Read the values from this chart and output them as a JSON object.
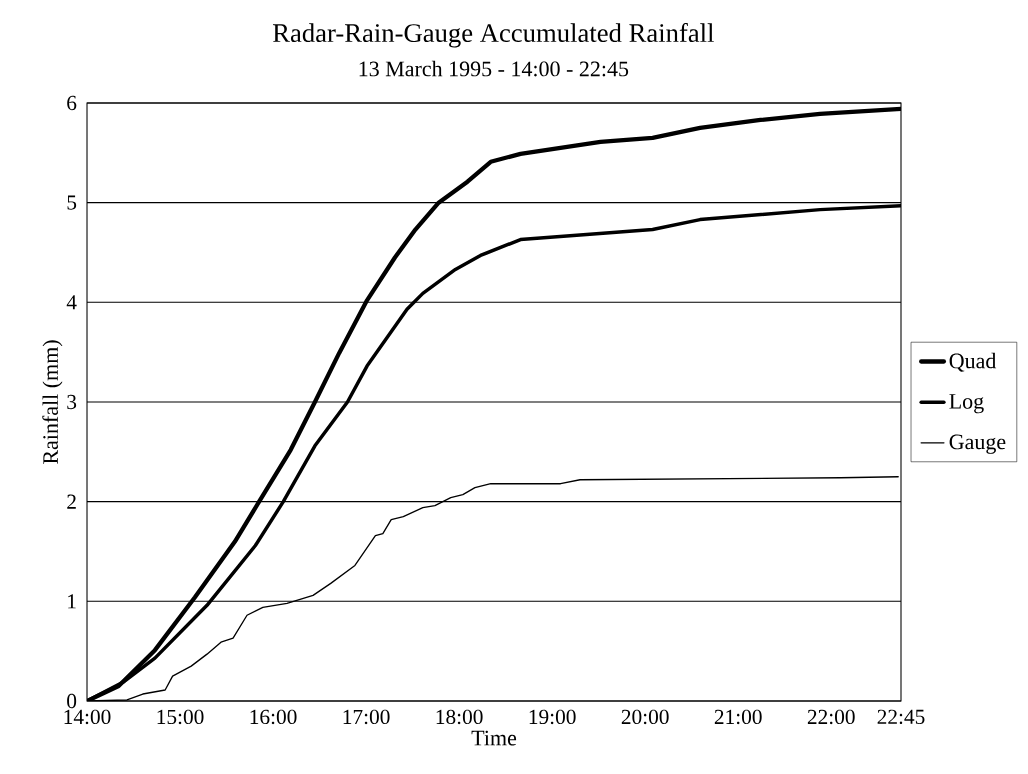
{
  "chart_data": {
    "type": "line",
    "title": "Radar-Rain-Gauge Accumulated Rainfall",
    "subtitle": "13 March 1995 - 14:00 - 22:45",
    "xlabel": "Time",
    "ylabel": "Rainfall (mm)",
    "xlim": [
      14,
      22.75
    ],
    "ylim": [
      0,
      6
    ],
    "xticks": [
      {
        "value": 14,
        "label": "14:00"
      },
      {
        "value": 15,
        "label": "15:00"
      },
      {
        "value": 16,
        "label": "16:00"
      },
      {
        "value": 17,
        "label": "17:00"
      },
      {
        "value": 18,
        "label": "18:00"
      },
      {
        "value": 19,
        "label": "19:00"
      },
      {
        "value": 20,
        "label": "20:00"
      },
      {
        "value": 21,
        "label": "21:00"
      },
      {
        "value": 22,
        "label": "22:00"
      },
      {
        "value": 22.75,
        "label": "22:45"
      }
    ],
    "yticks": [
      0,
      1,
      2,
      3,
      4,
      5,
      6
    ],
    "grid": "y",
    "legend": "right",
    "marker": "none",
    "line_style": "solid",
    "series": [
      {
        "name": "Quad",
        "color": "#000000",
        "x": [
          14,
          14.34,
          14.73,
          15.16,
          15.59,
          15.85,
          16.19,
          16.45,
          16.71,
          17.01,
          17.31,
          17.53,
          17.78,
          18.09,
          18.34,
          18.66,
          19.52,
          20.08,
          20.59,
          21.24,
          21.88,
          22.75
        ],
        "values": [
          0,
          0.15,
          0.51,
          1.04,
          1.6,
          2.0,
          2.52,
          3.0,
          3.49,
          4.02,
          4.45,
          4.73,
          5.0,
          5.21,
          5.41,
          5.49,
          5.61,
          5.65,
          5.75,
          5.83,
          5.89,
          5.94
        ]
      },
      {
        "name": "Log",
        "color": "#000000",
        "x": [
          14,
          14.39,
          14.73,
          15.29,
          15.81,
          16.11,
          16.45,
          16.8,
          17.01,
          17.44,
          17.61,
          17.96,
          18.23,
          18.66,
          20.08,
          20.59,
          21.88,
          22.75
        ],
        "values": [
          0,
          0.19,
          0.43,
          0.96,
          1.56,
          2.0,
          2.56,
          3.0,
          3.36,
          3.93,
          4.09,
          4.33,
          4.47,
          4.63,
          4.73,
          4.83,
          4.93,
          4.97
        ]
      },
      {
        "name": "Gauge",
        "color": "#000000",
        "x": [
          14,
          14.43,
          14.6,
          14.84,
          14.92,
          15.12,
          15.29,
          15.44,
          15.57,
          15.72,
          15.89,
          16.15,
          16.43,
          16.62,
          16.88,
          17.1,
          17.18,
          17.27,
          17.4,
          17.61,
          17.74,
          17.91,
          18.04,
          18.17,
          18.34,
          19.09,
          19.3,
          22.1,
          22.72
        ],
        "values": [
          0,
          0.01,
          0.07,
          0.11,
          0.25,
          0.35,
          0.47,
          0.59,
          0.63,
          0.86,
          0.94,
          0.98,
          1.06,
          1.18,
          1.36,
          1.66,
          1.68,
          1.82,
          1.85,
          1.94,
          1.96,
          2.04,
          2.07,
          2.14,
          2.18,
          2.18,
          2.22,
          2.24,
          2.25
        ]
      }
    ]
  }
}
